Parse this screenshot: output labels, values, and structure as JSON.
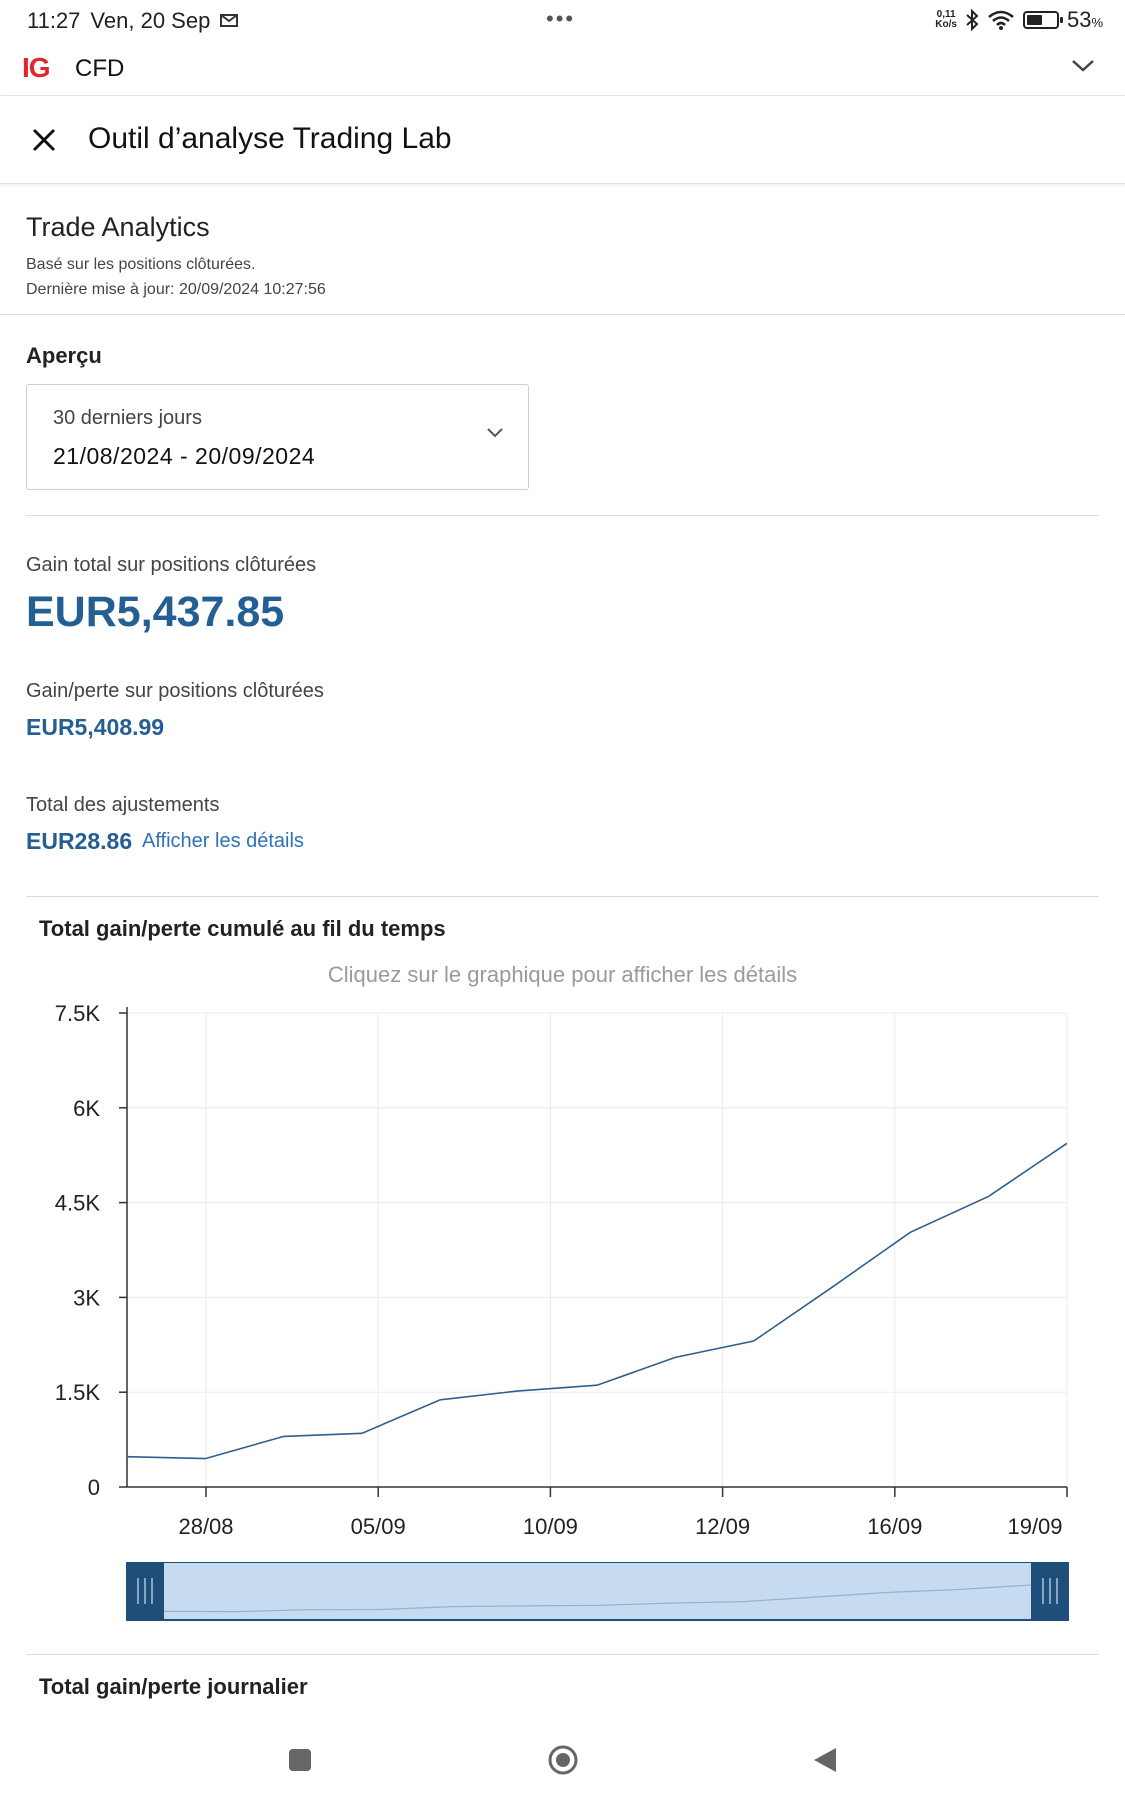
{
  "status_bar": {
    "time": "11:27",
    "date": "Ven, 20 Sep",
    "net_speed_value": "0,11",
    "net_speed_unit": "Ko/s",
    "battery_value": "53",
    "battery_unit": "%",
    "battery_level": 0.53
  },
  "app_header": {
    "logo": "IG",
    "product": "CFD"
  },
  "tool_header": {
    "title": "Outil d’analyse Trading Lab"
  },
  "analytics": {
    "title": "Trade Analytics",
    "based_on": "Basé sur les positions clôturées.",
    "last_update": "Dernière mise à jour: 20/09/2024 10:27:56"
  },
  "overview": {
    "title": "Aperçu",
    "period_label": "30 derniers jours",
    "period_range": "21/08/2024 - 20/09/2024"
  },
  "metrics": {
    "total_gain_label": "Gain total sur positions clôturées",
    "total_gain_value": "EUR5,437.85",
    "pnl_label": "Gain/perte sur positions clôturées",
    "pnl_value": "EUR5,408.99",
    "adjustments_label": "Total des ajustements",
    "adjustments_value": "EUR28.86",
    "details_link": "Afficher les détails"
  },
  "cumulative_chart": {
    "title": "Total gain/perte cumulé au fil du temps",
    "hint": "Cliquez sur le graphique pour afficher les détails"
  },
  "daily_chart": {
    "title": "Total gain/perte journalier"
  },
  "chart_data": {
    "type": "line",
    "y_ticks": [
      "0",
      "1.5K",
      "3K",
      "4.5K",
      "6K",
      "7.5K"
    ],
    "y_tick_values": [
      0,
      1500,
      3000,
      4500,
      6000,
      7500
    ],
    "x_ticks": [
      "28/08",
      "05/09",
      "10/09",
      "12/09",
      "16/09",
      "19/09"
    ],
    "ylim": [
      0,
      7500
    ],
    "grid": true,
    "series": [
      {
        "values": [
          480,
          450,
          800,
          850,
          1380,
          1520,
          1610,
          2050,
          2310,
          3160,
          4030,
          4600,
          5438
        ]
      }
    ],
    "colors": {
      "line": "#2e5f8e",
      "range_fill": "#c6dbef",
      "range_handle": "#1f4e7a"
    }
  },
  "nav_bar": {
    "recents_icon": "square-icon",
    "home_icon": "circle-icon",
    "back_icon": "triangle-back-icon"
  }
}
